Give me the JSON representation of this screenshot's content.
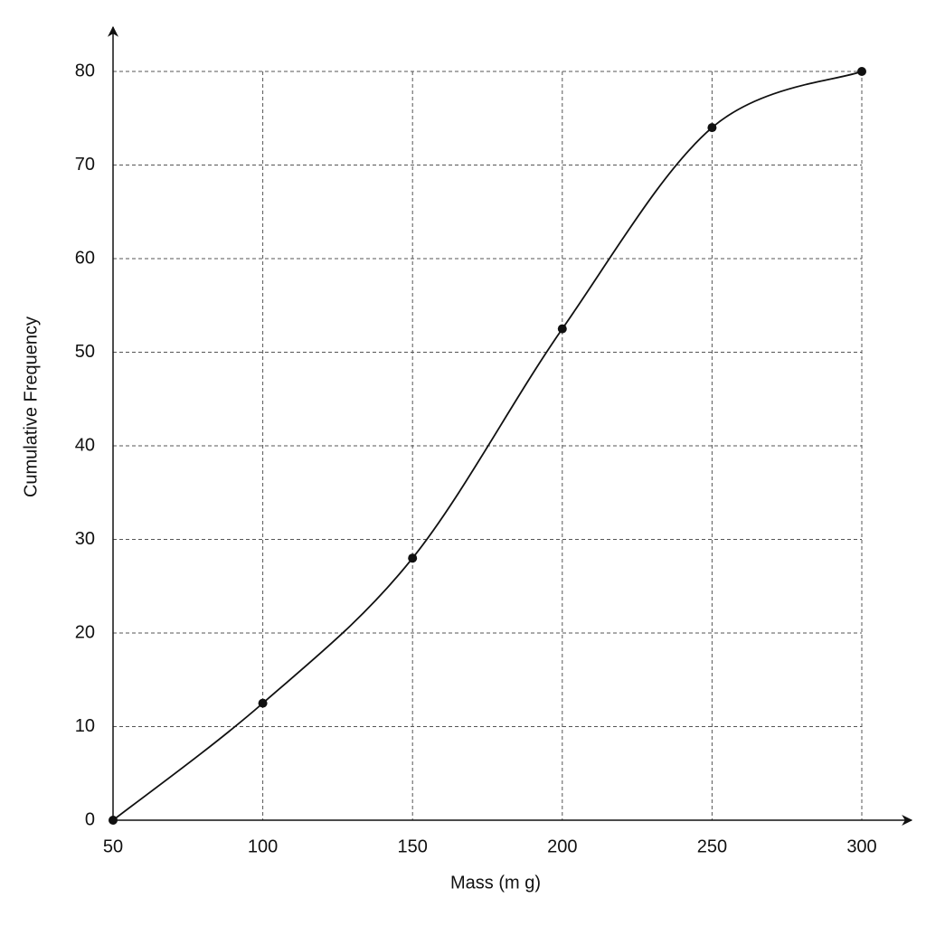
{
  "chart_data": {
    "type": "line",
    "xlabel": "Mass (m g)",
    "ylabel": "Cumulative Frequency",
    "x": [
      50,
      100,
      150,
      200,
      250,
      300
    ],
    "series": [
      {
        "color": "#111111",
        "values": [
          0,
          12.5,
          28,
          52.5,
          74,
          80
        ]
      }
    ],
    "xlim": [
      50,
      300
    ],
    "xticks": [
      50,
      100,
      150,
      200,
      250,
      300
    ],
    "ylim": [
      0,
      80
    ],
    "yticks": [
      0,
      10,
      20,
      30,
      40,
      50,
      60,
      70,
      80
    ],
    "grid": true,
    "smooth": true,
    "markers": true
  }
}
